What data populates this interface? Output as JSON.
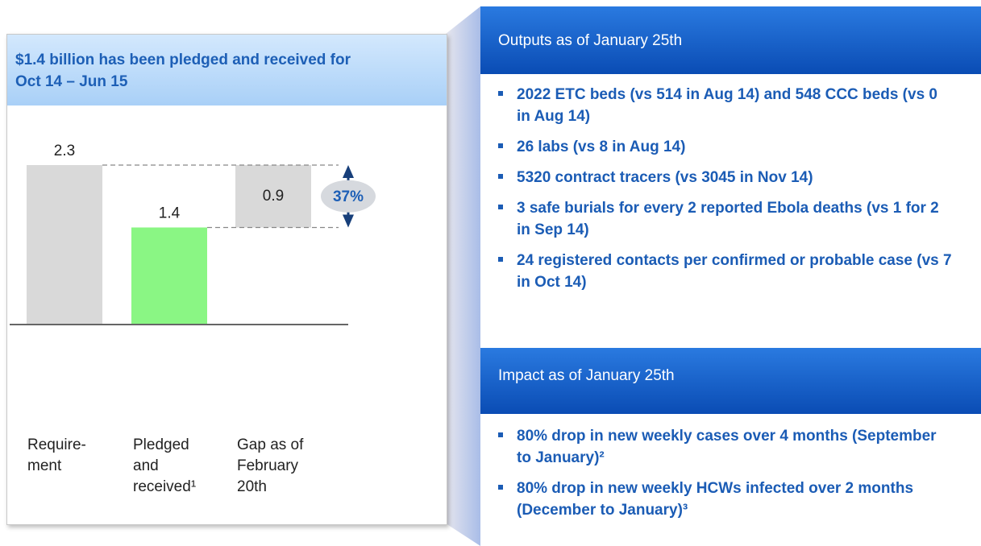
{
  "chart_data": {
    "type": "waterfall",
    "title": "$1.4 billion has been pledged and received for Oct 14 – Jun 15",
    "categories": [
      "Require-ment",
      "Pledged and received¹",
      "Gap as of February 20th"
    ],
    "values": [
      2.3,
      1.4,
      0.9
    ],
    "colors": [
      "#d9d9d9",
      "#8af684",
      "#d9d9d9"
    ],
    "ylim": [
      0,
      2.3
    ],
    "annotation": "37%"
  },
  "outputs": {
    "title": "Outputs as of January 25th",
    "items": [
      "2022 ETC beds (vs 514 in Aug 14) and 548 CCC beds (vs 0 in Aug 14)",
      "26 labs (vs 8 in Aug 14)",
      "5320 contract tracers (vs 3045 in Nov 14)",
      "3 safe burials for every 2 reported Ebola deaths (vs 1 for 2 in Sep 14)",
      "24 registered contacts per confirmed or probable case (vs 7 in Oct 14)"
    ]
  },
  "impact": {
    "title": "Impact as of January 25th",
    "items": [
      "80% drop in new weekly cases over 4 months (September to January)²",
      "80% drop in new weekly HCWs infected over 2 months (December to January)³"
    ]
  }
}
